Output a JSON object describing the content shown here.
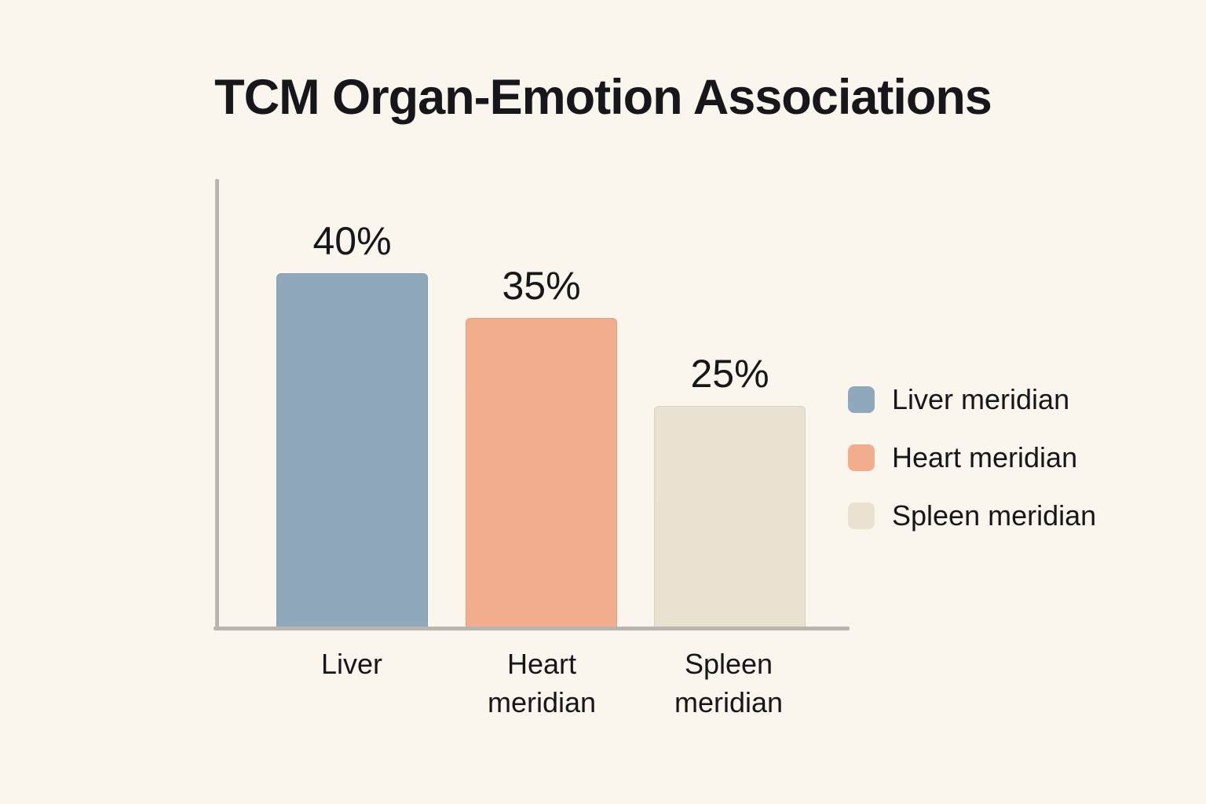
{
  "title": "TCM Organ-Emotion Associations",
  "chart_data": {
    "type": "bar",
    "title": "TCM Organ-Emotion Associations",
    "categories": [
      "Liver",
      "Heart meridian",
      "Spleen meridian"
    ],
    "tick_labels": [
      "Liver",
      "Heart\nmeridian",
      "Spleen\nmeridian"
    ],
    "values": [
      40,
      35,
      25
    ],
    "value_labels": [
      "40%",
      "35%",
      "25%"
    ],
    "unit": "%",
    "colors": [
      "#90A8BC",
      "#F2AD8D",
      "#EAE2D1"
    ],
    "ylim": [
      0,
      51
    ],
    "grid": false,
    "xlabel": "",
    "ylabel": "",
    "legend": {
      "position": "right",
      "entries": [
        {
          "label": "Liver meridian",
          "color": "#90A8BC"
        },
        {
          "label": "Heart meridian",
          "color": "#F2AD8D"
        },
        {
          "label": "Spleen meridian",
          "color": "#EAE2D1"
        }
      ]
    }
  },
  "colors": {
    "background": "#FAF6ED",
    "text": "#17171B",
    "axis": "#B8B6B1"
  }
}
